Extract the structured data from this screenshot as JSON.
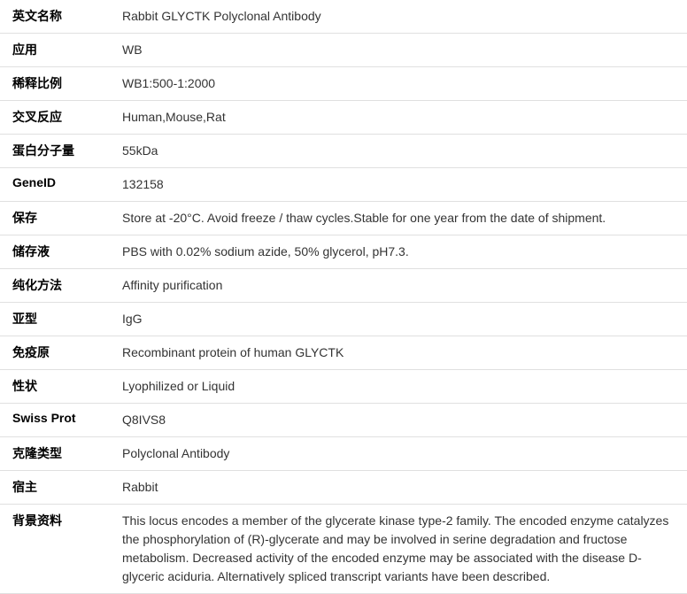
{
  "rows": [
    {
      "label": "英文名称",
      "value": "Rabbit GLYCTK Polyclonal Antibody"
    },
    {
      "label": "应用",
      "value": "WB"
    },
    {
      "label": "稀释比例",
      "value": "WB1:500-1:2000"
    },
    {
      "label": "交叉反应",
      "value": "Human,Mouse,Rat"
    },
    {
      "label": "蛋白分子量",
      "value": "55kDa"
    },
    {
      "label": "GeneID",
      "value": "132158"
    },
    {
      "label": "保存",
      "value": "Store at -20°C. Avoid freeze / thaw cycles.Stable for one year from the date of shipment."
    },
    {
      "label": "储存液",
      "value": "PBS with 0.02% sodium azide, 50% glycerol, pH7.3."
    },
    {
      "label": "纯化方法",
      "value": "Affinity purification"
    },
    {
      "label": "亚型",
      "value": "IgG"
    },
    {
      "label": "免疫原",
      "value": "Recombinant protein of human GLYCTK"
    },
    {
      "label": "性状",
      "value": "Lyophilized or Liquid"
    },
    {
      "label": "Swiss Prot",
      "value": "Q8IVS8"
    },
    {
      "label": "克隆类型",
      "value": "Polyclonal Antibody"
    },
    {
      "label": "宿主",
      "value": "Rabbit"
    },
    {
      "label": "背景资料",
      "value": "This locus encodes a member of the glycerate kinase type-2 family. The encoded enzyme catalyzes the phosphorylation of (R)-glycerate and may be involved in serine degradation and fructose metabolism. Decreased activity of the encoded enzyme may be associated with the disease D-glyceric aciduria. Alternatively spliced transcript variants have been described."
    }
  ]
}
